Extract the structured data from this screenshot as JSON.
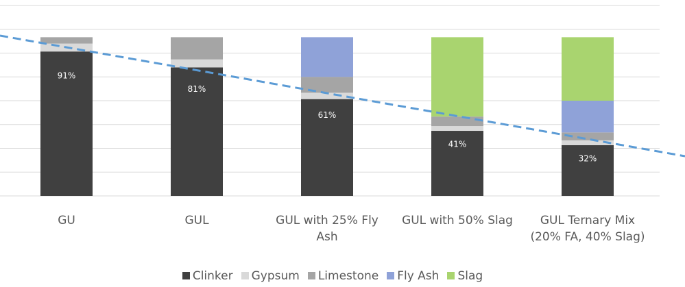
{
  "chart_data": {
    "type": "stacked_bar",
    "categories": [
      "GU",
      "GUL",
      "GUL with 25% Fly Ash",
      "GUL with 50% Slag",
      "GUL Ternary Mix (20% FA, 40% Slag)"
    ],
    "series": [
      {
        "name": "Clinker",
        "color": "#404040",
        "values": [
          91,
          81,
          61,
          41,
          32
        ],
        "value_labels": [
          "91%",
          "81%",
          "61%",
          "41%",
          "32%"
        ]
      },
      {
        "name": "Gypsum",
        "color": "#d9d9d9",
        "values": [
          5,
          5,
          4,
          3,
          3
        ]
      },
      {
        "name": "Limestone",
        "color": "#a5a5a5",
        "values": [
          4,
          14,
          10,
          6,
          5
        ]
      },
      {
        "name": "Fly Ash",
        "color": "#8fa2d8",
        "values": [
          0,
          0,
          25,
          0,
          20
        ]
      },
      {
        "name": "Slag",
        "color": "#a9d46f",
        "values": [
          0,
          0,
          0,
          50,
          40
        ]
      }
    ],
    "ylim": [
      0,
      120
    ],
    "yticks": [
      0,
      15,
      30,
      45,
      60,
      75,
      90,
      105,
      120
    ],
    "grid": true
  }
}
